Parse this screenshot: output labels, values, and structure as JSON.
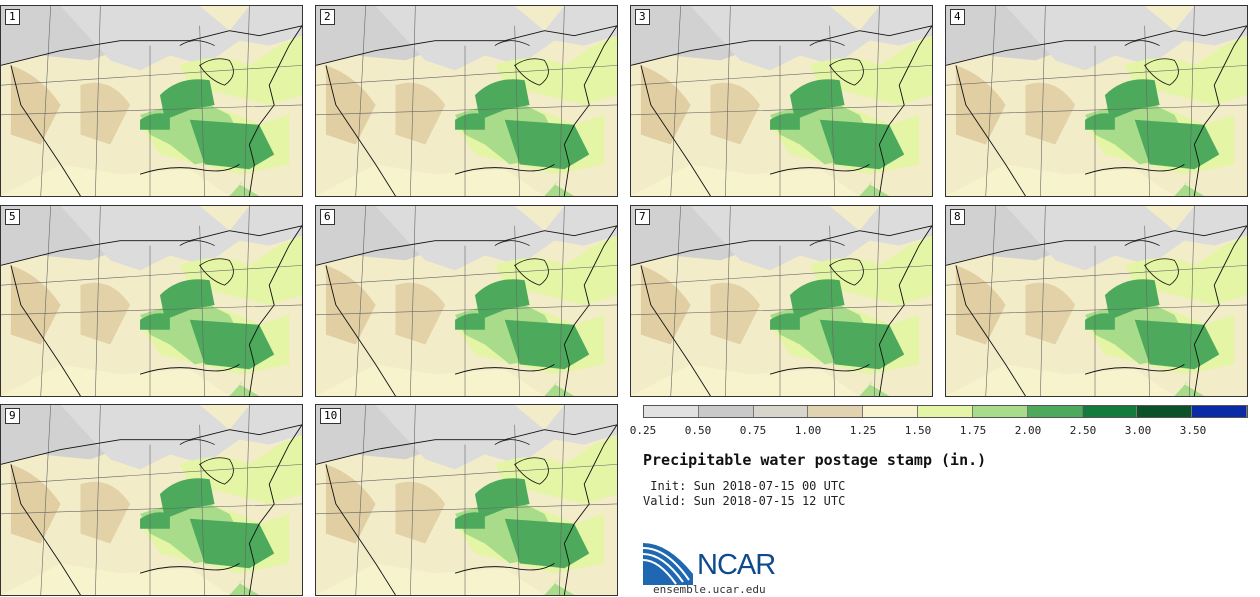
{
  "stamps": [
    "1",
    "2",
    "3",
    "4",
    "5",
    "6",
    "7",
    "8",
    "9",
    "10"
  ],
  "colorbar": {
    "colors": [
      "#e1e1e1",
      "#c9c9c9",
      "#d8d6cc",
      "#e2d3b0",
      "#f7f3cc",
      "#e4f5a5",
      "#a9dc8a",
      "#4daa5c",
      "#137b3c",
      "#0b5228",
      "#0b2aa6"
    ],
    "ticks": [
      "0.25",
      "0.50",
      "0.75",
      "1.00",
      "1.25",
      "1.50",
      "1.75",
      "2.00",
      "2.50",
      "3.00",
      "3.50"
    ]
  },
  "title": "Precipitable water postage stamp (in.)",
  "init": " Init: Sun 2018-07-15 00 UTC",
  "valid": "Valid: Sun 2018-07-15 12 UTC",
  "logo_text": "NCAR",
  "url": "ensemble.ucar.edu"
}
